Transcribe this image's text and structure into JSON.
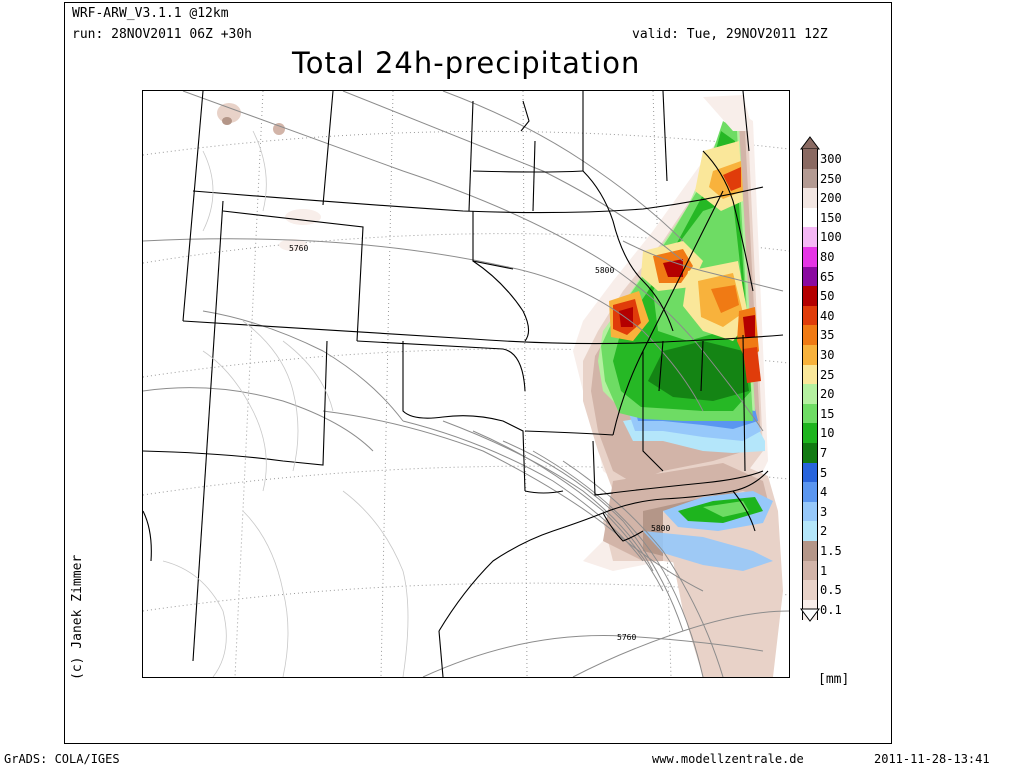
{
  "header": {
    "model": "WRF-ARW_V3.1.1 @12km",
    "run": "run: 28NOV2011 06Z +30h",
    "valid": "valid: Tue, 29NOV2011 12Z",
    "title": "Total 24h-precipitation"
  },
  "credit": "(c) Janek Zimmer",
  "legend": {
    "unit": "[mm]",
    "levels": [
      {
        "label": "300",
        "color": "#8a6a62"
      },
      {
        "label": "250",
        "color": "#b39a92"
      },
      {
        "label": "200",
        "color": "#f2e6e2"
      },
      {
        "label": "150",
        "color": "#ffffff"
      },
      {
        "label": "100",
        "color": "#f5b8f5"
      },
      {
        "label": "80",
        "color": "#e535e5"
      },
      {
        "label": "65",
        "color": "#8a0aa0"
      },
      {
        "label": "50",
        "color": "#b40000"
      },
      {
        "label": "40",
        "color": "#e03c0a"
      },
      {
        "label": "35",
        "color": "#f07a14"
      },
      {
        "label": "30",
        "color": "#f8b23c"
      },
      {
        "label": "25",
        "color": "#fae79a"
      },
      {
        "label": "20",
        "color": "#b4f0a0"
      },
      {
        "label": "15",
        "color": "#6edc64"
      },
      {
        "label": "10",
        "color": "#1eb41e"
      },
      {
        "label": "7",
        "color": "#127a12"
      },
      {
        "label": "5",
        "color": "#2864dc"
      },
      {
        "label": "4",
        "color": "#5a96f0"
      },
      {
        "label": "3",
        "color": "#96c8fa"
      },
      {
        "label": "2",
        "color": "#b4e6fa"
      },
      {
        "label": "1.5",
        "color": "#b49688"
      },
      {
        "label": "1",
        "color": "#d2b4a8"
      },
      {
        "label": "0.5",
        "color": "#e8d2c8"
      },
      {
        "label": "0.1",
        "color": "#f8eeea"
      }
    ]
  },
  "contour_labels": [
    "5760",
    "5800",
    "5800",
    "5760"
  ],
  "footer": {
    "left": "GrADS: COLA/IGES",
    "center": "www.modellzentrale.de",
    "right": "2011-11-28-13:41"
  }
}
